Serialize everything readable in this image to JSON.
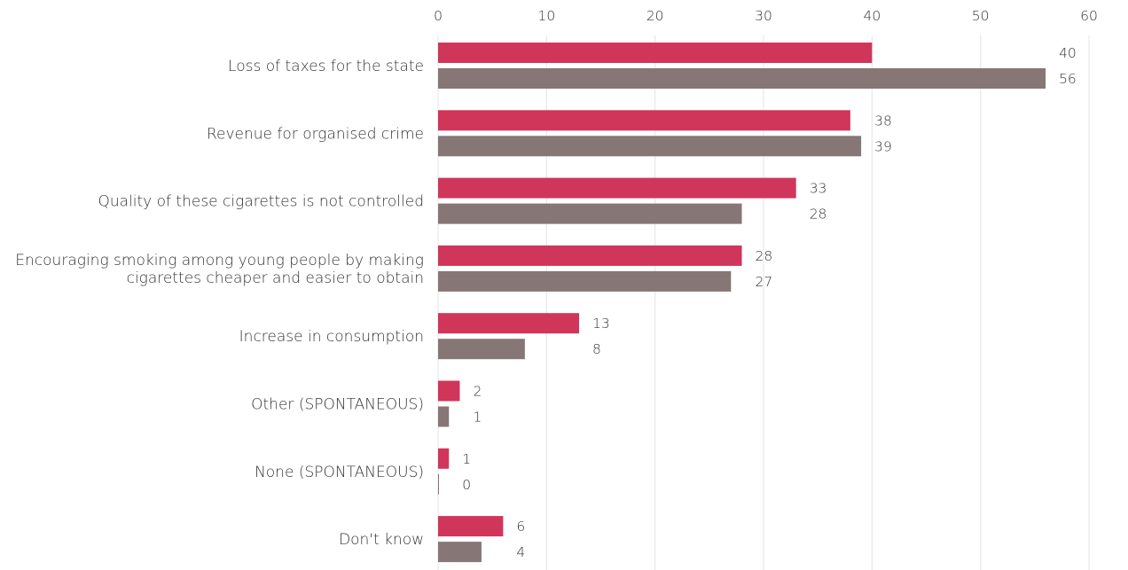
{
  "chart_data": {
    "type": "bar",
    "orientation": "horizontal",
    "categories": [
      [
        "Loss of taxes for the state"
      ],
      [
        "Revenue for organised crime"
      ],
      [
        "Quality of these cigarettes is not controlled"
      ],
      [
        "Encouraging smoking among young people by making",
        "cigarettes cheaper and easier to obtain"
      ],
      [
        "Increase in consumption"
      ],
      [
        "Other (SPONTANEOUS)"
      ],
      [
        "None (SPONTANEOUS)"
      ],
      [
        "Don't know"
      ]
    ],
    "series": [
      {
        "color": "#d0355a",
        "values": [
          40,
          38,
          33,
          28,
          13,
          2,
          1,
          6
        ]
      },
      {
        "color": "#877676",
        "values": [
          56,
          39,
          28,
          27,
          8,
          1,
          0,
          4
        ]
      }
    ],
    "xlim": [
      0,
      60
    ],
    "xticks": [
      0,
      10,
      20,
      30,
      40,
      50,
      60
    ],
    "x_axis_position": "top",
    "grid": "vertical"
  }
}
